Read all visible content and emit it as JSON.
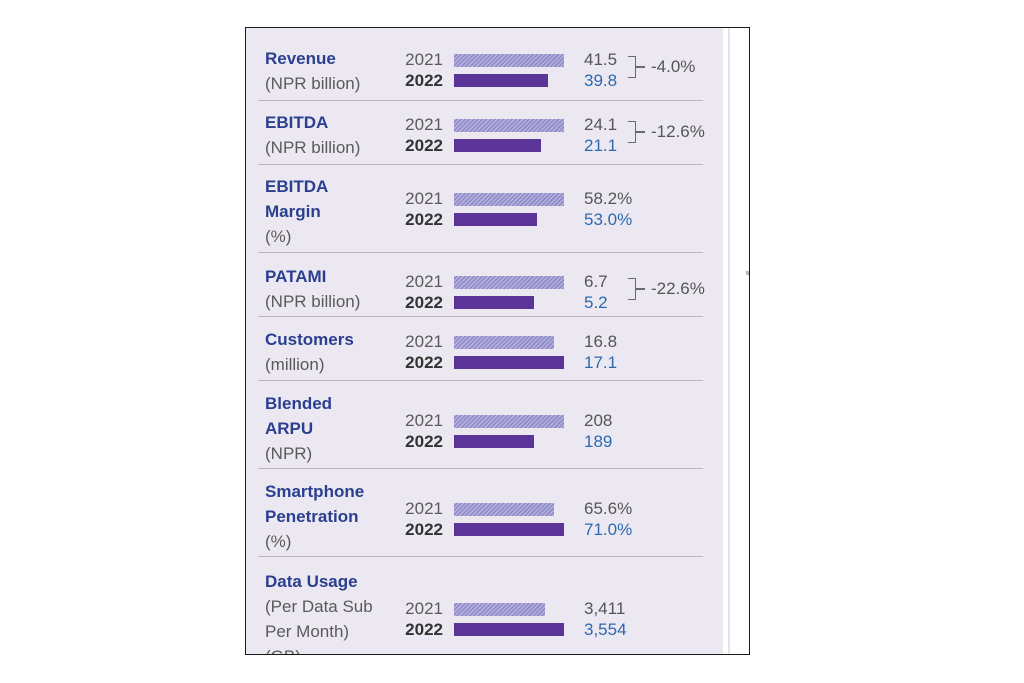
{
  "chart_data": {
    "type": "bar",
    "orientation": "horizontal",
    "series_labels": [
      "2021",
      "2022"
    ],
    "metrics": [
      {
        "label": [
          "Revenue"
        ],
        "unit": [
          "(NPR billion)"
        ],
        "values": [
          41.5,
          39.8
        ],
        "value_labels": [
          "41.5",
          "39.8"
        ],
        "change": "-4.0%"
      },
      {
        "label": [
          "EBITDA"
        ],
        "unit": [
          "(NPR billion)"
        ],
        "values": [
          24.1,
          21.1
        ],
        "value_labels": [
          "24.1",
          "21.1"
        ],
        "change": "-12.6%"
      },
      {
        "label": [
          "EBITDA",
          "Margin"
        ],
        "unit": [
          "(%)"
        ],
        "values": [
          58.2,
          53.0
        ],
        "value_labels": [
          "58.2%",
          "53.0%"
        ],
        "change": ""
      },
      {
        "label": [
          "PATAMI"
        ],
        "unit": [
          "(NPR billion)"
        ],
        "values": [
          6.7,
          5.2
        ],
        "value_labels": [
          "6.7",
          "5.2"
        ],
        "change": "-22.6%"
      },
      {
        "label": [
          "Customers"
        ],
        "unit": [
          "(million)"
        ],
        "values": [
          16.8,
          17.1
        ],
        "value_labels": [
          "16.8",
          "17.1"
        ],
        "change": ""
      },
      {
        "label": [
          "Blended",
          "ARPU"
        ],
        "unit": [
          "(NPR)"
        ],
        "values": [
          208,
          189
        ],
        "value_labels": [
          "208",
          "189"
        ],
        "change": ""
      },
      {
        "label": [
          "Smartphone",
          "Penetration"
        ],
        "unit": [
          "(%)"
        ],
        "values": [
          65.6,
          71.0
        ],
        "value_labels": [
          "65.6%",
          "71.0%"
        ],
        "change": ""
      },
      {
        "label": [
          "Data Usage"
        ],
        "unit": [
          "(Per Data Sub",
          "Per Month)",
          "(GB)"
        ],
        "values": [
          3411,
          3554
        ],
        "value_labels": [
          "3,411",
          "3,554"
        ],
        "change": ""
      }
    ],
    "bar_fraction_of_max": [
      [
        1.0,
        0.85
      ],
      [
        1.0,
        0.79
      ],
      [
        1.0,
        0.75
      ],
      [
        1.0,
        0.73
      ],
      [
        0.91,
        1.0
      ],
      [
        1.0,
        0.73
      ],
      [
        0.91,
        1.0
      ],
      [
        0.83,
        1.0
      ]
    ],
    "colors": {
      "bar_2021": "#9a95cf",
      "bar_2022": "#5b3497",
      "label": "#2a3f8f",
      "value_2022": "#2d6ab0",
      "panel_background": "#ece8f1"
    }
  }
}
